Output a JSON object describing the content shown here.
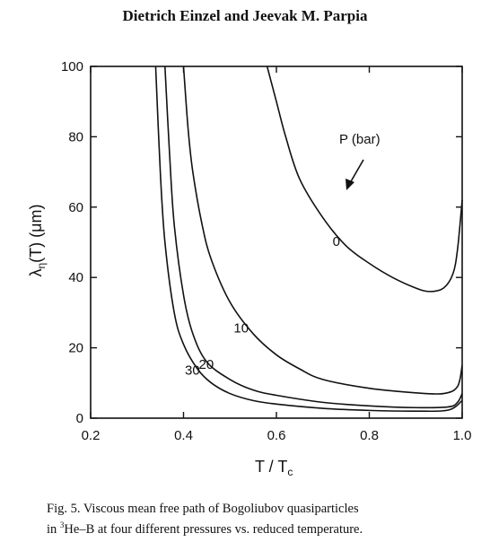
{
  "header": {
    "authors": "Dietrich Einzel and Jeevak M. Parpia"
  },
  "chart_data": {
    "type": "line",
    "xlabel": "T / T",
    "xlabel_sub": "c",
    "ylabel": "λ",
    "ylabel_sub": "η",
    "ylabel_rest": "(T) (μm)",
    "xlim": [
      0.2,
      1.0
    ],
    "ylim": [
      0,
      100
    ],
    "x_ticks": [
      0.2,
      0.4,
      0.6,
      0.8,
      1.0
    ],
    "x_tick_labels": [
      "0.2",
      "0.4",
      "0.6",
      "0.8",
      "1.0"
    ],
    "y_ticks": [
      0,
      20,
      40,
      60,
      80,
      100
    ],
    "y_tick_labels": [
      "0",
      "20",
      "40",
      "60",
      "80",
      "100"
    ],
    "grid": false,
    "legend_title": "P (bar)",
    "series": [
      {
        "name": "0",
        "x": [
          0.58,
          0.6,
          0.62,
          0.65,
          0.7,
          0.75,
          0.8,
          0.85,
          0.9,
          0.93,
          0.96,
          0.98,
          0.99,
          1.0
        ],
        "y": [
          100,
          90,
          80,
          68,
          57,
          49,
          44,
          40,
          37,
          36,
          37,
          41,
          48,
          62
        ]
      },
      {
        "name": "10",
        "x": [
          0.4,
          0.41,
          0.42,
          0.44,
          0.46,
          0.5,
          0.55,
          0.6,
          0.65,
          0.7,
          0.8,
          0.9,
          0.96,
          0.99,
          1.0
        ],
        "y": [
          100,
          82,
          70,
          55,
          45,
          33,
          24,
          18,
          14,
          11,
          8.5,
          7.2,
          7.0,
          9,
          15
        ]
      },
      {
        "name": "20",
        "x": [
          0.36,
          0.37,
          0.38,
          0.4,
          0.42,
          0.45,
          0.5,
          0.55,
          0.6,
          0.7,
          0.8,
          0.9,
          0.97,
          0.99,
          1.0
        ],
        "y": [
          100,
          75,
          55,
          35,
          24,
          16,
          11,
          8,
          6.5,
          4.5,
          3.5,
          3.0,
          3.2,
          4.5,
          7
        ]
      },
      {
        "name": "30",
        "x": [
          0.34,
          0.35,
          0.36,
          0.38,
          0.4,
          0.43,
          0.46,
          0.5,
          0.55,
          0.6,
          0.7,
          0.8,
          0.9,
          0.97,
          1.0
        ],
        "y": [
          100,
          70,
          50,
          30,
          21,
          14,
          10,
          7,
          5,
          4,
          2.8,
          2.2,
          2.0,
          2.3,
          5
        ]
      }
    ]
  },
  "caption": {
    "line1": "Fig. 5.  Viscous mean free path of Bogoliubov quasiparticles",
    "line2_pre": "in ",
    "line2_sup": "3",
    "line2_post": "He–B at four different pressures vs. reduced temperature."
  }
}
